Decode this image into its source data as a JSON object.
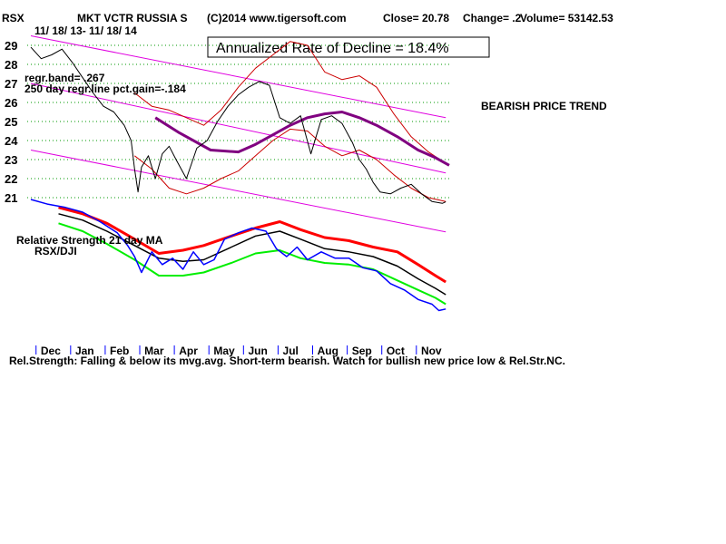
{
  "header": {
    "symbol": "RSX",
    "name": "MKT VCTR RUSSIA S",
    "copyright": "(C)2014 www.tigersoft.com",
    "close": "Close=  20.78",
    "change": "Change= .2",
    "volume": "Volume= 53142.53",
    "date_range": "11/ 18/ 13- 11/ 18/ 14"
  },
  "rate_box": "Annualized Rate of Decline = 18.4%",
  "regr_band": "regr.band= .267",
  "regr_gain": "250 day regr.line pct.gain=-.184",
  "trend_label": "BEARISH PRICE TREND",
  "rs_label_1": "Relative Strength 21 day MA",
  "rs_label_2": "RSX/DJI",
  "footer": "Rel.Strength: Falling & below its mvg.avg. Short-term bearish. Watch for bullish new price low & Rel.Str.NC.",
  "colors": {
    "price": "#000000",
    "bollinger": "#cc0000",
    "ma": "#800080",
    "channel": "#e000e0",
    "grid": "#009900",
    "rs": "#0000ff",
    "rs_upper": "#ff0000",
    "rs_mid": "#000000",
    "rs_lower": "#00ee00"
  },
  "chart_data": {
    "type": "line",
    "title": "MKT VCTR RUSSIA S",
    "ylim": [
      20,
      29.5
    ],
    "y_ticks": [
      21,
      22,
      23,
      24,
      25,
      26,
      27,
      28,
      29
    ],
    "months": [
      "Dec",
      "Jan",
      "Feb",
      "Mar",
      "Apr",
      "May",
      "Jun",
      "Jul",
      "Aug",
      "Sep",
      "Oct",
      "Nov"
    ],
    "month_x": [
      0.6,
      1.6,
      2.6,
      3.6,
      4.6,
      5.6,
      6.6,
      7.6,
      8.6,
      9.6,
      10.6,
      11.6
    ],
    "x_range": [
      0,
      12.1
    ],
    "price": {
      "x": [
        0,
        0.3,
        0.6,
        0.9,
        1.2,
        1.5,
        1.8,
        2.1,
        2.4,
        2.7,
        2.9,
        3.0,
        3.1,
        3.2,
        3.4,
        3.6,
        3.8,
        4.0,
        4.2,
        4.5,
        4.8,
        5.1,
        5.4,
        5.7,
        6.0,
        6.3,
        6.6,
        6.9,
        7.2,
        7.5,
        7.8,
        8.1,
        8.4,
        8.7,
        9.0,
        9.3,
        9.5,
        9.7,
        9.9,
        10.1,
        10.4,
        10.7,
        11.0,
        11.3,
        11.6,
        11.9,
        12.0
      ],
      "y": [
        28.9,
        28.3,
        28.5,
        28.8,
        28.1,
        27.3,
        26.5,
        25.8,
        25.5,
        24.8,
        24.0,
        22.5,
        21.3,
        22.6,
        23.2,
        22.0,
        23.3,
        23.7,
        23.0,
        22.0,
        23.6,
        24.0,
        25.0,
        25.8,
        26.4,
        26.8,
        27.1,
        26.9,
        25.2,
        24.9,
        25.3,
        23.3,
        25.1,
        25.3,
        24.9,
        23.9,
        23.0,
        22.5,
        21.8,
        21.3,
        21.2,
        21.5,
        21.7,
        21.2,
        20.8,
        20.7,
        20.78
      ]
    },
    "ma": {
      "x": [
        3.6,
        4.3,
        5.2,
        6.0,
        6.5,
        7.0,
        7.5,
        8.0,
        8.5,
        9.0,
        9.5,
        10.0,
        10.6,
        11.2,
        11.7,
        12.1
      ],
      "y": [
        25.2,
        24.4,
        23.5,
        23.4,
        23.8,
        24.3,
        24.8,
        25.2,
        25.4,
        25.5,
        25.2,
        24.8,
        24.2,
        23.5,
        23.1,
        22.7
      ]
    },
    "bollinger_upper": {
      "x": [
        3.0,
        3.5,
        4.0,
        4.5,
        5.0,
        5.5,
        6.0,
        6.5,
        7.0,
        7.5,
        8.0,
        8.5,
        9.0,
        9.5,
        10.0,
        10.5,
        11.0,
        11.5,
        12.0
      ],
      "y": [
        26.5,
        25.8,
        25.6,
        25.2,
        24.8,
        25.6,
        26.8,
        27.8,
        28.5,
        29.2,
        29.0,
        27.6,
        27.2,
        27.4,
        26.8,
        25.4,
        24.2,
        23.4,
        22.8
      ]
    },
    "bollinger_lower": {
      "x": [
        3.0,
        3.5,
        4.0,
        4.5,
        5.0,
        5.5,
        6.0,
        6.5,
        7.0,
        7.5,
        8.0,
        8.5,
        9.0,
        9.5,
        10.0,
        10.5,
        11.0,
        11.5,
        12.0
      ],
      "y": [
        23.2,
        22.5,
        21.5,
        21.2,
        21.5,
        22.0,
        22.4,
        23.2,
        24.0,
        24.6,
        24.5,
        23.7,
        23.2,
        23.5,
        23.0,
        22.2,
        21.5,
        21.0,
        20.8
      ]
    },
    "channel": {
      "upper": [
        [
          0,
          29.5
        ],
        [
          12.0,
          25.2
        ]
      ],
      "middle": [
        [
          0,
          27.0
        ],
        [
          12.0,
          22.3
        ]
      ],
      "lower": [
        [
          0,
          23.5
        ],
        [
          12.0,
          19.2
        ]
      ]
    },
    "rs": {
      "x": [
        0,
        0.5,
        1.0,
        1.5,
        2.0,
        2.5,
        2.8,
        3.0,
        3.2,
        3.5,
        3.8,
        4.1,
        4.4,
        4.7,
        5.0,
        5.3,
        5.6,
        6.0,
        6.4,
        6.8,
        7.1,
        7.4,
        7.7,
        8.0,
        8.4,
        8.8,
        9.2,
        9.6,
        10.0,
        10.4,
        10.8,
        11.2,
        11.6,
        11.8,
        12.0
      ],
      "y": [
        100,
        97,
        95,
        92,
        86,
        79,
        71,
        64,
        54,
        67,
        59,
        63,
        56,
        67,
        59,
        62,
        75,
        79,
        82,
        80,
        69,
        64,
        70,
        62,
        67,
        63,
        63,
        57,
        55,
        47,
        43,
        37,
        34,
        30,
        31
      ]
    },
    "rs_upper": {
      "x": [
        0.8,
        1.5,
        2.2,
        3.0,
        3.7,
        4.4,
        5.0,
        5.8,
        6.5,
        7.2,
        7.8,
        8.5,
        9.2,
        9.9,
        10.6,
        11.2,
        11.7,
        12.0
      ],
      "y": [
        95,
        91,
        85,
        75,
        66,
        68,
        71,
        77,
        82,
        86,
        81,
        76,
        74,
        70,
        67,
        59,
        52,
        48
      ]
    },
    "rs_mid": {
      "x": [
        0.8,
        1.5,
        2.2,
        3.0,
        3.7,
        4.4,
        5.0,
        5.8,
        6.5,
        7.2,
        7.8,
        8.5,
        9.2,
        9.9,
        10.6,
        11.2,
        11.7,
        12.0
      ],
      "y": [
        91,
        87,
        80,
        71,
        63,
        61,
        62,
        70,
        77,
        80,
        75,
        69,
        67,
        64,
        58,
        50,
        44,
        40
      ]
    },
    "rs_lower": {
      "x": [
        0.8,
        1.5,
        2.2,
        3.0,
        3.7,
        4.4,
        5.0,
        5.8,
        6.5,
        7.2,
        7.8,
        8.5,
        9.2,
        9.9,
        10.6,
        11.2,
        11.7,
        12.0
      ],
      "y": [
        85,
        80,
        72,
        62,
        52,
        52,
        54,
        60,
        66,
        68,
        63,
        60,
        59,
        56,
        49,
        43,
        38,
        34
      ]
    }
  }
}
